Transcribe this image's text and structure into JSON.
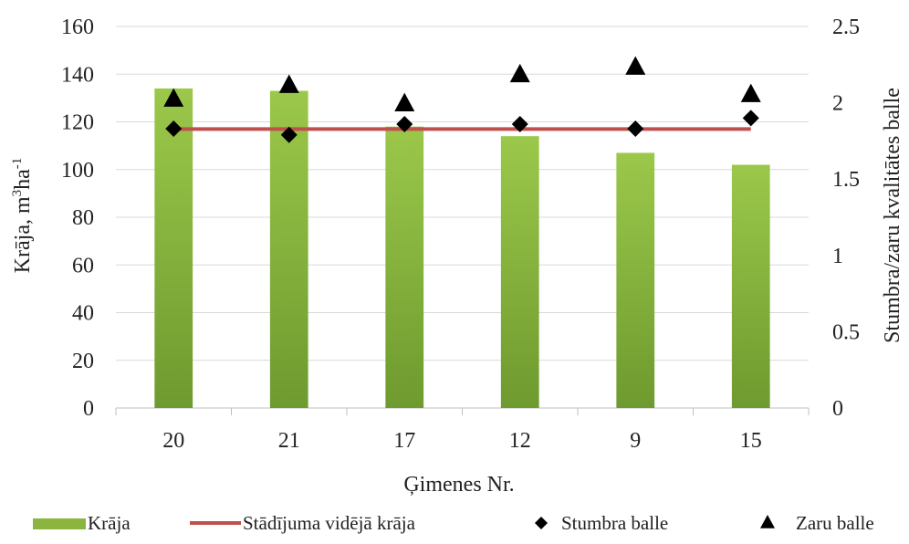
{
  "chart_data": {
    "type": "bar",
    "categories": [
      "20",
      "21",
      "17",
      "12",
      "9",
      "15"
    ],
    "xlabel": "Ģimenes Nr.",
    "ylabel": "Krāja, m",
    "ylabel_sup1": "3",
    "ylabel_mid": "ha",
    "ylabel_sup2": "-1",
    "y2label": "Stumbra/zaru kvalitātes balle",
    "ylim": [
      0,
      160
    ],
    "yticks": [
      "0",
      "20",
      "40",
      "60",
      "80",
      "100",
      "120",
      "140",
      "160"
    ],
    "y2lim": [
      0,
      2.5
    ],
    "y2ticks": [
      "0",
      "0.5",
      "1",
      "1.5",
      "2",
      "2.5"
    ],
    "grid": true,
    "legend_position": "bottom",
    "series": [
      {
        "name": "Krāja",
        "kind": "bar",
        "axis": "left",
        "color": "#8bb53e",
        "values": [
          134,
          133,
          118,
          114,
          107,
          102
        ]
      },
      {
        "name": "Stādījuma vidējā krāja",
        "kind": "line",
        "axis": "left",
        "color": "#c0504d",
        "values": [
          117,
          117,
          117,
          117,
          117,
          117
        ]
      },
      {
        "name": "Stumbra balle",
        "kind": "marker",
        "marker": "diamond",
        "axis": "right",
        "color": "#000000",
        "values": [
          1.83,
          1.79,
          1.86,
          1.86,
          1.83,
          1.9
        ]
      },
      {
        "name": "Zaru balle",
        "kind": "marker",
        "marker": "triangle",
        "axis": "right",
        "color": "#000000",
        "values": [
          2.03,
          2.12,
          2.0,
          2.19,
          2.24,
          2.06
        ]
      }
    ]
  }
}
